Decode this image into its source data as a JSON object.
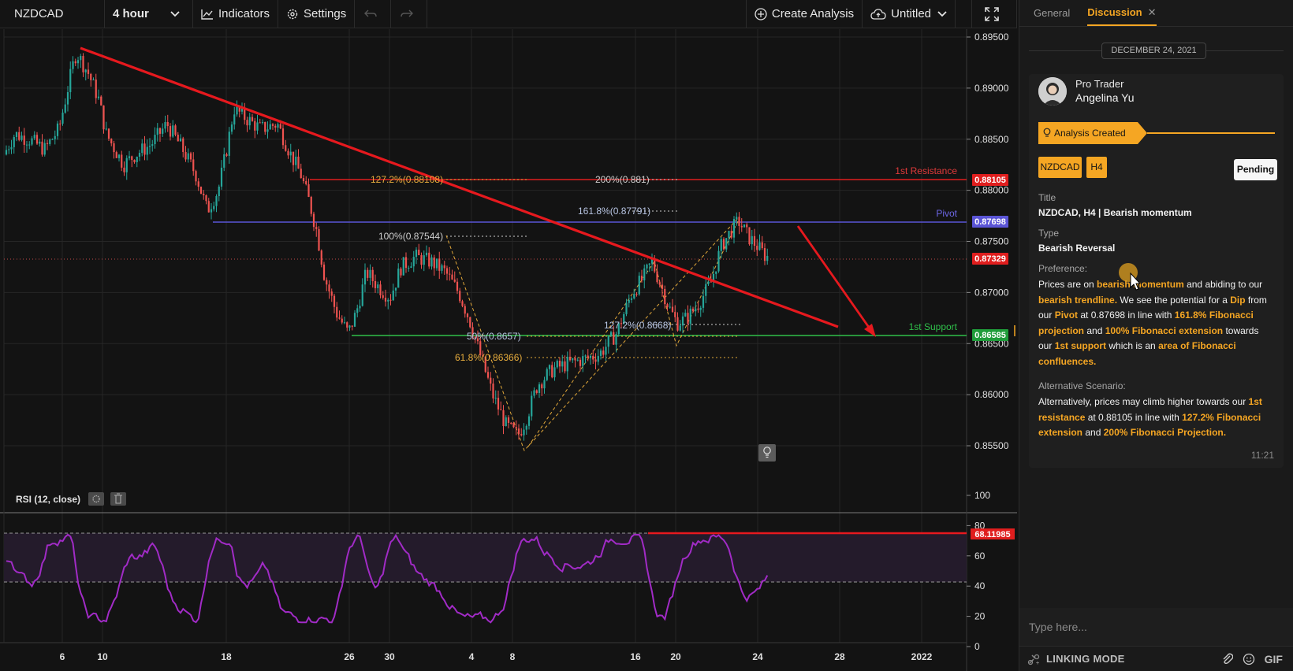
{
  "toolbar": {
    "symbol": "NZDCAD",
    "interval": "4 hour",
    "indicators_label": "Indicators",
    "settings_label": "Settings",
    "create_analysis_label": "Create Analysis",
    "layout_name": "Untitled"
  },
  "chart": {
    "price_ticks": [
      "0.89500",
      "0.89000",
      "0.88500",
      "0.88000",
      "0.87500",
      "0.87000",
      "0.86500",
      "0.86000",
      "0.85500"
    ],
    "date_ticks": [
      "6",
      "10",
      "18",
      "26",
      "30",
      "4",
      "8",
      "16",
      "20",
      "24",
      "28",
      "2022"
    ],
    "price_badges": [
      {
        "value": "0.88105",
        "color": "#e01e1e"
      },
      {
        "value": "0.87698",
        "color": "#5b55d6"
      },
      {
        "value": "0.87329",
        "color": "#e01e1e"
      },
      {
        "value": "0.86585",
        "color": "#1f9d3a"
      }
    ],
    "level_labels": {
      "resistance": "1st Resistance",
      "pivot": "Pivot",
      "support": "1st Support"
    },
    "fib_labels": {
      "ext_127": "127.2%(0.88108)",
      "proj_200": "200%(0.881)",
      "proj_161": "161.8%(0.87791)",
      "ext_100": "100%(0.87544)",
      "ret_50": "50%(0.8657)",
      "ret_618": "61.8%(0.86366)",
      "proj_127": "127.2%(0.8668)"
    },
    "rsi": {
      "title": "RSI (12, close)",
      "ticks": [
        "100",
        "80",
        "60",
        "40",
        "20",
        "0"
      ],
      "value": "68.11985"
    },
    "colors": {
      "up": "#26a69a",
      "down": "#ef5350",
      "trendline": "#e6191e",
      "rsi_line": "#a12bc6"
    }
  },
  "panel": {
    "tabs": [
      {
        "label": "General"
      },
      {
        "label": "Discussion"
      }
    ],
    "date": "DECEMBER 24, 2021",
    "author_role": "Pro Trader",
    "author_name": "Angelina Yu",
    "banner_label": "Analysis Created",
    "tags": [
      "NZDCAD",
      "H4"
    ],
    "status": "Pending",
    "title_label": "Title",
    "title_value": "NZDCAD, H4 | Bearish momentum",
    "type_label": "Type",
    "type_value": "Bearish Reversal",
    "preference_label": "Preference:",
    "preference_parts": [
      {
        "t": "Prices are on ",
        "h": false
      },
      {
        "t": "bearish momentum",
        "h": true
      },
      {
        "t": " and abiding to our ",
        "h": false
      },
      {
        "t": "bearish trendline.",
        "h": true
      },
      {
        "t": " We see the potential for a ",
        "h": false
      },
      {
        "t": "Dip",
        "h": true
      },
      {
        "t": " from our ",
        "h": false
      },
      {
        "t": "Pivot",
        "h": true
      },
      {
        "t": " at 0.87698 in line with ",
        "h": false
      },
      {
        "t": "161.8% Fibonacci projection",
        "h": true
      },
      {
        "t": " and ",
        "h": false
      },
      {
        "t": "100% Fibonacci extension",
        "h": true
      },
      {
        "t": " towards our ",
        "h": false
      },
      {
        "t": "1st support",
        "h": true
      },
      {
        "t": " which is an ",
        "h": false
      },
      {
        "t": "area of Fibonacci confluences.",
        "h": true
      }
    ],
    "alt_label": "Alternative Scenario:",
    "alt_parts": [
      {
        "t": "Alternatively, prices may climb higher towards our ",
        "h": false
      },
      {
        "t": "1st resistance",
        "h": true
      },
      {
        "t": " at 0.88105 in line with ",
        "h": false
      },
      {
        "t": "127.2% Fibonacci extension",
        "h": true
      },
      {
        "t": " and ",
        "h": false
      },
      {
        "t": "200% Fibonacci Projection.",
        "h": true
      }
    ],
    "time": "11:21",
    "input_placeholder": "Type here...",
    "linking_label": "LINKING MODE",
    "gif_label": "GIF"
  }
}
